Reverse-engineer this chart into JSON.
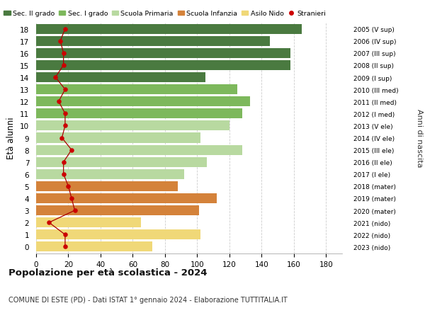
{
  "ages": [
    18,
    17,
    16,
    15,
    14,
    13,
    12,
    11,
    10,
    9,
    8,
    7,
    6,
    5,
    4,
    3,
    2,
    1,
    0
  ],
  "bar_values": [
    165,
    145,
    158,
    158,
    105,
    125,
    133,
    128,
    120,
    102,
    128,
    106,
    92,
    88,
    112,
    101,
    65,
    102,
    72
  ],
  "stranieri": [
    18,
    15,
    17,
    17,
    12,
    18,
    14,
    18,
    18,
    16,
    22,
    17,
    17,
    20,
    22,
    24,
    8,
    18,
    18
  ],
  "right_labels": [
    "2005 (V sup)",
    "2006 (IV sup)",
    "2007 (III sup)",
    "2008 (II sup)",
    "2009 (I sup)",
    "2010 (III med)",
    "2011 (II med)",
    "2012 (I med)",
    "2013 (V ele)",
    "2014 (IV ele)",
    "2015 (III ele)",
    "2016 (II ele)",
    "2017 (I ele)",
    "2018 (mater)",
    "2019 (mater)",
    "2020 (mater)",
    "2021 (nido)",
    "2022 (nido)",
    "2023 (nido)"
  ],
  "bar_colors": [
    "#4a7a40",
    "#4a7a40",
    "#4a7a40",
    "#4a7a40",
    "#4a7a40",
    "#7db85c",
    "#7db85c",
    "#7db85c",
    "#b8d9a0",
    "#b8d9a0",
    "#b8d9a0",
    "#b8d9a0",
    "#b8d9a0",
    "#d4823a",
    "#d4823a",
    "#d4823a",
    "#f0d878",
    "#f0d878",
    "#f0d878"
  ],
  "legend_labels": [
    "Sec. II grado",
    "Sec. I grado",
    "Scuola Primaria",
    "Scuola Infanzia",
    "Asilo Nido",
    "Stranieri"
  ],
  "legend_colors": [
    "#4a7a40",
    "#7db85c",
    "#b8d9a0",
    "#d4823a",
    "#f0d878",
    "#cc0000"
  ],
  "title": "Popolazione per età scolastica - 2024",
  "subtitle": "COMUNE DI ESTE (PD) - Dati ISTAT 1° gennaio 2024 - Elaborazione TUTTITALIA.IT",
  "ylabel": "Età alunni",
  "right_ylabel": "Anni di nascita",
  "xlim_max": 190,
  "xticks": [
    0,
    20,
    40,
    60,
    80,
    100,
    120,
    140,
    160,
    180
  ],
  "bar_height": 0.82,
  "stranieri_color": "#cc0000",
  "line_color": "#aa0000",
  "bg_color": "#ffffff",
  "grid_color": "#cccccc"
}
